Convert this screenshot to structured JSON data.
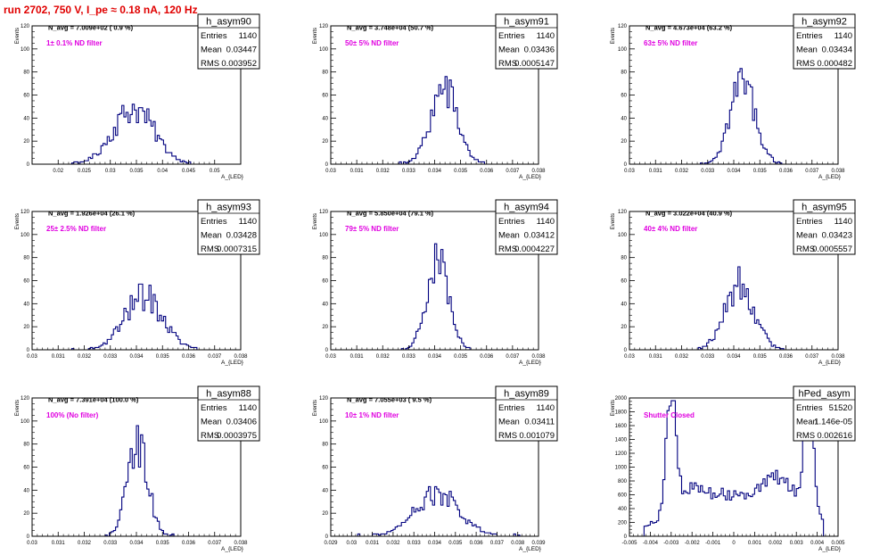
{
  "canvas_title": "run 2702,   750 V, I_pe ≈ 0.18 nA, 120 Hz",
  "colors": {
    "histogram": "#00007f",
    "annotation": "#e000e0",
    "title": "#e00000",
    "axis": "#000000"
  },
  "stats_labels": {
    "entries": "Entries",
    "mean": "Mean",
    "rms": "RMS"
  },
  "chart_data": [
    {
      "type": "histogram",
      "name": "h_asym90",
      "ylabel": "Events",
      "xlabel": "A_{LED}",
      "info": "N_avg = 7.009e+02 ( 0.9 %)",
      "annotation": "1± 0.1% ND filter",
      "stats": {
        "entries": "1140",
        "mean": "0.03447",
        "rms": "0.003952"
      },
      "xlim": [
        0.015,
        0.055
      ],
      "ylim": [
        0,
        120
      ],
      "xticks": [
        "0.02",
        "0.025",
        "0.03",
        "0.035",
        "0.04",
        "0.045",
        "0.05"
      ],
      "xtick_values": [
        0.02,
        0.025,
        0.03,
        0.035,
        0.04,
        0.045,
        0.05
      ],
      "yticks": [
        "0",
        "20",
        "40",
        "60",
        "80",
        "100",
        "120"
      ],
      "ytick_values": [
        0,
        20,
        40,
        60,
        80,
        100,
        120
      ],
      "mean": 0.03447,
      "sigma": 0.003952,
      "peak": 60,
      "entries": 1140
    },
    {
      "type": "histogram",
      "name": "h_asym91",
      "ylabel": "Events",
      "xlabel": "A_{LED}",
      "info": "N_avg = 3.748e+04 (50.7 %)",
      "annotation": "50± 5% ND filter",
      "stats": {
        "entries": "1140",
        "mean": "0.03436",
        "rms": "0.0005147"
      },
      "xlim": [
        0.03,
        0.038
      ],
      "ylim": [
        0,
        120
      ],
      "xticks": [
        "0.03",
        "0.031",
        "0.032",
        "0.033",
        "0.034",
        "0.035",
        "0.036",
        "0.037",
        "0.038"
      ],
      "xtick_values": [
        0.03,
        0.031,
        0.032,
        0.033,
        0.034,
        0.035,
        0.036,
        0.037,
        0.038
      ],
      "yticks": [
        "0",
        "20",
        "40",
        "60",
        "80",
        "100",
        "120"
      ],
      "ytick_values": [
        0,
        20,
        40,
        60,
        80,
        100,
        120
      ],
      "mean": 0.03436,
      "sigma": 0.0005147,
      "peak": 82,
      "entries": 1140
    },
    {
      "type": "histogram",
      "name": "h_asym92",
      "ylabel": "Events",
      "xlabel": "A_{LED}",
      "info": "N_avg = 4.673e+04 (63.2 %)",
      "annotation": "63± 5% ND filter",
      "stats": {
        "entries": "1140",
        "mean": "0.03434",
        "rms": "0.000482"
      },
      "xlim": [
        0.03,
        0.038
      ],
      "ylim": [
        0,
        120
      ],
      "xticks": [
        "0.03",
        "0.031",
        "0.032",
        "0.033",
        "0.034",
        "0.035",
        "0.036",
        "0.037",
        "0.038"
      ],
      "xtick_values": [
        0.03,
        0.031,
        0.032,
        0.033,
        0.034,
        0.035,
        0.036,
        0.037,
        0.038
      ],
      "yticks": [
        "0",
        "20",
        "40",
        "60",
        "80",
        "100",
        "120"
      ],
      "ytick_values": [
        0,
        20,
        40,
        60,
        80,
        100,
        120
      ],
      "mean": 0.03434,
      "sigma": 0.000482,
      "peak": 90,
      "entries": 1140
    },
    {
      "type": "histogram",
      "name": "h_asym93",
      "ylabel": "Events",
      "xlabel": "A_{LED}",
      "info": "N_avg = 1.926e+04 (26.1 %)",
      "annotation": "25± 2.5% ND filter",
      "stats": {
        "entries": "1140",
        "mean": "0.03428",
        "rms": "0.0007315"
      },
      "xlim": [
        0.03,
        0.038
      ],
      "ylim": [
        0,
        120
      ],
      "xticks": [
        "0.03",
        "0.031",
        "0.032",
        "0.033",
        "0.034",
        "0.035",
        "0.036",
        "0.037",
        "0.038"
      ],
      "xtick_values": [
        0.03,
        0.031,
        0.032,
        0.033,
        0.034,
        0.035,
        0.036,
        0.037,
        0.038
      ],
      "yticks": [
        "0",
        "20",
        "40",
        "60",
        "80",
        "100",
        "120"
      ],
      "ytick_values": [
        0,
        20,
        40,
        60,
        80,
        100,
        120
      ],
      "mean": 0.03428,
      "sigma": 0.0007315,
      "peak": 58,
      "entries": 1140
    },
    {
      "type": "histogram",
      "name": "h_asym94",
      "ylabel": "Events",
      "xlabel": "A_{LED}",
      "info": "N_avg = 5.850e+04 (79.1 %)",
      "annotation": "79± 5% ND filter",
      "stats": {
        "entries": "1140",
        "mean": "0.03412",
        "rms": "0.0004227"
      },
      "xlim": [
        0.03,
        0.038
      ],
      "ylim": [
        0,
        120
      ],
      "xticks": [
        "0.03",
        "0.031",
        "0.032",
        "0.033",
        "0.034",
        "0.035",
        "0.036",
        "0.037",
        "0.038"
      ],
      "xtick_values": [
        0.03,
        0.031,
        0.032,
        0.033,
        0.034,
        0.035,
        0.036,
        0.037,
        0.038
      ],
      "yticks": [
        "0",
        "20",
        "40",
        "60",
        "80",
        "100",
        "120"
      ],
      "ytick_values": [
        0,
        20,
        40,
        60,
        80,
        100,
        120
      ],
      "mean": 0.03412,
      "sigma": 0.0004227,
      "peak": 92,
      "entries": 1140
    },
    {
      "type": "histogram",
      "name": "h_asym95",
      "ylabel": "Events",
      "xlabel": "A_{LED}",
      "info": "N_avg = 3.022e+04 (40.9 %)",
      "annotation": "40± 4% ND filter",
      "stats": {
        "entries": "1140",
        "mean": "0.03423",
        "rms": "0.0005557"
      },
      "xlim": [
        0.03,
        0.038
      ],
      "ylim": [
        0,
        120
      ],
      "xticks": [
        "0.03",
        "0.031",
        "0.032",
        "0.033",
        "0.034",
        "0.035",
        "0.036",
        "0.037",
        "0.038"
      ],
      "xtick_values": [
        0.03,
        0.031,
        0.032,
        0.033,
        0.034,
        0.035,
        0.036,
        0.037,
        0.038
      ],
      "yticks": [
        "0",
        "20",
        "40",
        "60",
        "80",
        "100",
        "120"
      ],
      "ytick_values": [
        0,
        20,
        40,
        60,
        80,
        100,
        120
      ],
      "mean": 0.03423,
      "sigma": 0.0005557,
      "peak": 72,
      "entries": 1140
    },
    {
      "type": "histogram",
      "name": "h_asym88",
      "ylabel": "Events",
      "xlabel": "A_{LED}",
      "info": "N_avg = 7.391e+04 (100.0 %)",
      "annotation": "100% (No filter)",
      "stats": {
        "entries": "1140",
        "mean": "0.03406",
        "rms": "0.0003975"
      },
      "xlim": [
        0.03,
        0.038
      ],
      "ylim": [
        0,
        120
      ],
      "xticks": [
        "0.03",
        "0.031",
        "0.032",
        "0.033",
        "0.034",
        "0.035",
        "0.036",
        "0.037",
        "0.038"
      ],
      "xtick_values": [
        0.03,
        0.031,
        0.032,
        0.033,
        0.034,
        0.035,
        0.036,
        0.037,
        0.038
      ],
      "yticks": [
        "0",
        "20",
        "40",
        "60",
        "80",
        "100",
        "120"
      ],
      "ytick_values": [
        0,
        20,
        40,
        60,
        80,
        100,
        120
      ],
      "mean": 0.03406,
      "sigma": 0.0003975,
      "peak": 97,
      "entries": 1140
    },
    {
      "type": "histogram",
      "name": "h_asym89",
      "ylabel": "Events",
      "xlabel": "A_{LED}",
      "info": "N_avg = 7.055e+03 ( 9.5 %)",
      "annotation": "10± 1% ND filter",
      "stats": {
        "entries": "1140",
        "mean": "0.03411",
        "rms": "0.001079"
      },
      "xlim": [
        0.029,
        0.039
      ],
      "ylim": [
        0,
        120
      ],
      "xticks": [
        "0.029",
        "0.03",
        "0.031",
        "0.032",
        "0.033",
        "0.034",
        "0.035",
        "0.036",
        "0.037",
        "0.038",
        "0.039"
      ],
      "xtick_values": [
        0.029,
        0.03,
        0.031,
        0.032,
        0.033,
        0.034,
        0.035,
        0.036,
        0.037,
        0.038,
        0.039
      ],
      "yticks": [
        "0",
        "20",
        "40",
        "60",
        "80",
        "100",
        "120"
      ],
      "ytick_values": [
        0,
        20,
        40,
        60,
        80,
        100,
        120
      ],
      "mean": 0.03411,
      "sigma": 0.001079,
      "peak": 45,
      "entries": 1140
    },
    {
      "type": "histogram",
      "name": "hPed_asym",
      "ylabel": "Events",
      "xlabel": "A_{LED}",
      "info": "",
      "annotation": "Shutter Closed",
      "stats": {
        "entries": "51520",
        "mean": "1.146e-05",
        "rms": "0.002616"
      },
      "xlim": [
        -0.005,
        0.005
      ],
      "ylim": [
        0,
        2000
      ],
      "xticks": [
        "-0.005",
        "-0.004",
        "-0.003",
        "-0.002",
        "-0.001",
        "0",
        "0.001",
        "0.002",
        "0.003",
        "0.004",
        "0.005"
      ],
      "xtick_values": [
        -0.005,
        -0.004,
        -0.003,
        -0.002,
        -0.001,
        0,
        0.001,
        0.002,
        0.003,
        0.004,
        0.005
      ],
      "yticks": [
        "0",
        "200",
        "400",
        "600",
        "800",
        "1000",
        "1200",
        "1400",
        "1600",
        "1800",
        "2000"
      ],
      "ytick_values": [
        0,
        200,
        400,
        600,
        800,
        1000,
        1200,
        1400,
        1600,
        1800,
        2000
      ],
      "mean": 1.146e-05,
      "sigma": 0.002616,
      "peak": 1970,
      "entries": 51520,
      "shape": "bimodal"
    }
  ]
}
